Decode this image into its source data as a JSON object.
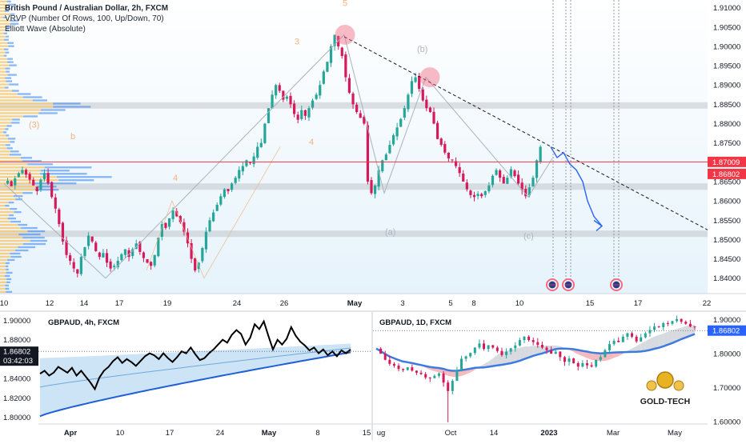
{
  "colors": {
    "bull": "#26a69a",
    "bear": "#d6195b",
    "price_line": "#f23645",
    "trend": "#2962ff",
    "vp_up": "#f7c974",
    "vp_down": "#2f80ed",
    "zone": "#b8bcc4",
    "bubble": "#f26b83",
    "wave_label": "#f0b37e",
    "corr_label": "#b0b6c0"
  },
  "header": {
    "title": "British Pound / Australian Dollar, 2h, FXCM",
    "indicator_1": "VRVP (Number Of Rows, 100, Up/Down, 70)",
    "indicator_2": "Elliott Wave (Absolute)"
  },
  "main_chart": {
    "symbol": "GBPAUD",
    "interval": "2h",
    "y_ticks": [
      "1.91000",
      "1.90500",
      "1.90000",
      "1.89500",
      "1.89000",
      "1.88500",
      "1.88000",
      "1.87500",
      "1.87000",
      "1.86500",
      "1.86000",
      "1.85500",
      "1.85000",
      "1.84500",
      "1.84000"
    ],
    "y_range": [
      1.836,
      1.912
    ],
    "x_ticks": [
      "10",
      "12",
      "14",
      "17",
      "19",
      "24",
      "26",
      "May",
      "3",
      "5",
      "8",
      "10",
      "15",
      "17",
      "22"
    ],
    "current_price": "1.86802",
    "current_price_value": 1.86802,
    "resistance_price": "1.87009",
    "resistance_value": 1.87009,
    "wave_labels": [
      "(3)",
      "b",
      "4",
      "3",
      "5",
      "4"
    ],
    "correction_labels": [
      "(b)",
      "(a)",
      "(c)"
    ],
    "trendline_from": 1.9025,
    "trendline_to": 1.8525,
    "zones": [
      1.8847,
      1.8637,
      1.8515
    ],
    "event_icons": [
      "gb-flag-icon",
      "au-flag-icon",
      "au-flag-icon"
    ],
    "close_path": [
      1.8645,
      1.8652,
      1.8638,
      1.8658,
      1.8672,
      1.868,
      1.8668,
      1.8655,
      1.864,
      1.8625,
      1.8655,
      1.8672,
      1.8645,
      1.861,
      1.858,
      1.854,
      1.8495,
      1.846,
      1.8445,
      1.8425,
      1.8412,
      1.8455,
      1.848,
      1.851,
      1.8495,
      1.847,
      1.8455,
      1.8465,
      1.844,
      1.8425,
      1.8432,
      1.8445,
      1.8462,
      1.8475,
      1.8455,
      1.8475,
      1.849,
      1.8468,
      1.8452,
      1.844,
      1.8432,
      1.846,
      1.8505,
      1.854,
      1.853,
      1.8555,
      1.8575,
      1.856,
      1.8545,
      1.852,
      1.849,
      1.845,
      1.842,
      1.844,
      1.8478,
      1.852,
      1.855,
      1.857,
      1.859,
      1.8612,
      1.863,
      1.8625,
      1.8645,
      1.866,
      1.868,
      1.869,
      1.8705,
      1.8698,
      1.8715,
      1.874,
      1.875,
      1.88,
      1.884,
      1.8875,
      1.89,
      1.8885,
      1.8862,
      1.887,
      1.885,
      1.8825,
      1.881,
      1.8835,
      1.882,
      1.884,
      1.886,
      1.8875,
      1.89,
      1.8935,
      1.896,
      1.9,
      1.903,
      1.9,
      1.8975,
      1.892,
      1.888,
      1.885,
      1.883,
      1.8815,
      1.88,
      1.865,
      1.862,
      1.864,
      1.868,
      1.8705,
      1.872,
      1.8745,
      1.877,
      1.879,
      1.8812,
      1.884,
      1.8875,
      1.891,
      1.892,
      1.889,
      1.886,
      1.884,
      1.883,
      1.88,
      1.876,
      1.8745,
      1.8725,
      1.871,
      1.8705,
      1.869,
      1.8672,
      1.865,
      1.863,
      1.8615,
      1.861,
      1.8618,
      1.8612,
      1.8625,
      1.864,
      1.8665,
      1.868,
      1.866,
      1.8645,
      1.866,
      1.8682,
      1.8664,
      1.8645,
      1.8628,
      1.8612,
      1.8635,
      1.866,
      1.8705,
      1.874
    ],
    "forecast_path": [
      1.874,
      1.8712,
      1.8725,
      1.8695,
      1.868,
      1.865,
      1.86,
      1.856,
      1.8535
    ]
  },
  "sub_chart_left": {
    "title": "GBPAUD, 4h, FXCM",
    "y_ticks": [
      "1.90000",
      "1.88000",
      "1.86000",
      "1.84000",
      "1.82000",
      "1.80000"
    ],
    "y_range": [
      1.793,
      1.907
    ],
    "x_ticks": [
      "Apr",
      "10",
      "17",
      "24",
      "May",
      "8",
      "15"
    ],
    "price_tag": "1.86802",
    "countdown": "03:42:03",
    "line": [
      1.845,
      1.848,
      1.843,
      1.846,
      1.852,
      1.849,
      1.846,
      1.851,
      1.843,
      1.848,
      1.842,
      1.836,
      1.829,
      1.841,
      1.848,
      1.852,
      1.858,
      1.862,
      1.856,
      1.86,
      1.857,
      1.853,
      1.858,
      1.863,
      1.866,
      1.864,
      1.86,
      1.866,
      1.861,
      1.857,
      1.862,
      1.868,
      1.866,
      1.872,
      1.865,
      1.859,
      1.861,
      1.866,
      1.87,
      1.875,
      1.88,
      1.877,
      1.885,
      1.89,
      1.886,
      1.875,
      1.882,
      1.896,
      1.891,
      1.899,
      1.884,
      1.87,
      1.88,
      1.875,
      1.881,
      1.893,
      1.884,
      1.878,
      1.874,
      1.869,
      1.872,
      1.866,
      1.87,
      1.864,
      1.868,
      1.863,
      1.869,
      1.866,
      1.87
    ],
    "band_upper_start": 1.861,
    "band_upper_end": 1.876,
    "band_lower_start": 1.801,
    "band_lower_end": 1.867
  },
  "sub_chart_right": {
    "title": "GBPAUD, 1D, FXCM",
    "y_ticks": [
      "1.90000",
      "1.80000",
      "1.70000",
      "1.60000"
    ],
    "y_range": [
      1.593,
      1.918
    ],
    "x_ticks": [
      "ug",
      "Oct",
      "14",
      "2023",
      "Mar",
      "May"
    ],
    "price_tag": "1.86802",
    "logo_text": "GOLD-TECH",
    "line": [
      1.815,
      1.8,
      1.782,
      1.77,
      1.765,
      1.755,
      1.752,
      1.76,
      1.75,
      1.744,
      1.74,
      1.73,
      1.728,
      1.735,
      1.742,
      1.715,
      1.69,
      1.72,
      1.752,
      1.785,
      1.792,
      1.802,
      1.818,
      1.83,
      1.814,
      1.825,
      1.818,
      1.808,
      1.796,
      1.806,
      1.816,
      1.824,
      1.84,
      1.85,
      1.84,
      1.834,
      1.826,
      1.818,
      1.81,
      1.8,
      1.806,
      1.79,
      1.776,
      1.786,
      1.772,
      1.762,
      1.772,
      1.766,
      1.762,
      1.782,
      1.79,
      1.81,
      1.828,
      1.838,
      1.834,
      1.85,
      1.86,
      1.85,
      1.836,
      1.848,
      1.86,
      1.87,
      1.88,
      1.878,
      1.89,
      1.888,
      1.896,
      1.902,
      1.894,
      1.888,
      1.88,
      1.878
    ]
  }
}
